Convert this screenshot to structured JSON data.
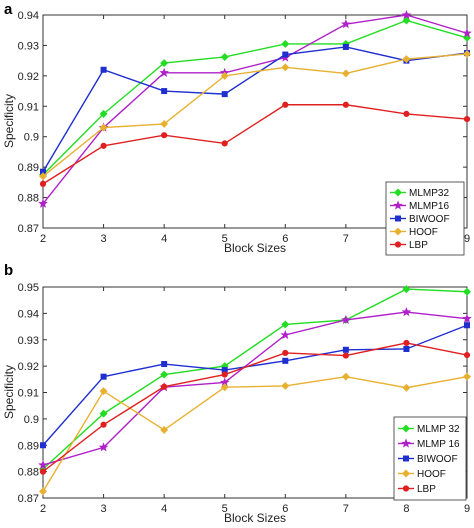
{
  "chart_data": [
    {
      "panel": "a",
      "type": "line",
      "xlabel": "Block Sizes",
      "ylabel": "Specificity",
      "x": [
        2,
        3,
        4,
        5,
        6,
        7,
        8,
        9
      ],
      "xlim": [
        2,
        9
      ],
      "ylim": [
        0.87,
        0.94
      ],
      "yticks": [
        "0.87",
        "0.88",
        "0.89",
        "0.9",
        "0.91",
        "0.92",
        "0.93",
        "0.94"
      ],
      "xticks": [
        "2",
        "3",
        "4",
        "5",
        "6",
        "7",
        "8",
        "9"
      ],
      "grid": false,
      "legend_position": "right",
      "series": [
        {
          "name": "MLMP32",
          "color": "#22dd22",
          "marker": "diamond",
          "values": [
            0.8875,
            0.9075,
            0.9242,
            0.9262,
            0.9305,
            0.9305,
            0.9382,
            0.9325
          ]
        },
        {
          "name": "MLMP16",
          "color": "#b020c8",
          "marker": "star",
          "values": [
            0.878,
            0.903,
            0.921,
            0.921,
            0.926,
            0.937,
            0.94,
            0.934
          ]
        },
        {
          "name": "BIWOOF",
          "color": "#1f2fd0",
          "marker": "square",
          "values": [
            0.8885,
            0.922,
            0.915,
            0.914,
            0.927,
            0.9295,
            0.925,
            0.9275
          ]
        },
        {
          "name": "HOOF",
          "color": "#e8b030",
          "marker": "diamond",
          "values": [
            0.887,
            0.903,
            0.9042,
            0.92,
            0.9228,
            0.9208,
            0.9255,
            0.9272
          ]
        },
        {
          "name": "LBP",
          "color": "#e02020",
          "marker": "circle",
          "values": [
            0.8845,
            0.897,
            0.9005,
            0.8978,
            0.9105,
            0.9105,
            0.9075,
            0.9058
          ]
        }
      ]
    },
    {
      "panel": "b",
      "type": "line",
      "xlabel": "Block Sizes",
      "ylabel": "Specificity",
      "x": [
        2,
        3,
        4,
        5,
        6,
        7,
        8,
        9
      ],
      "xlim": [
        2,
        9
      ],
      "ylim": [
        0.87,
        0.95
      ],
      "yticks": [
        "0.87",
        "0.88",
        "0.89",
        "0.9",
        "0.91",
        "0.92",
        "0.93",
        "0.94",
        "0.95"
      ],
      "xticks": [
        "2",
        "3",
        "4",
        "5",
        "6",
        "7",
        "8",
        "9"
      ],
      "grid": false,
      "legend_position": "bottom-right",
      "series": [
        {
          "name": "MLMP 32",
          "color": "#22dd22",
          "marker": "diamond",
          "values": [
            0.881,
            0.902,
            0.9168,
            0.92,
            0.9358,
            0.9375,
            0.9492,
            0.9482
          ]
        },
        {
          "name": "MLMP 16",
          "color": "#b020c8",
          "marker": "star",
          "values": [
            0.8825,
            0.8892,
            0.912,
            0.9138,
            0.9318,
            0.9375,
            0.9405,
            0.938
          ]
        },
        {
          "name": "BIWOOF",
          "color": "#1f2fd0",
          "marker": "square",
          "values": [
            0.89,
            0.916,
            0.9208,
            0.9185,
            0.922,
            0.9262,
            0.9265,
            0.9355
          ]
        },
        {
          "name": "HOOF",
          "color": "#e8b030",
          "marker": "diamond",
          "values": [
            0.8725,
            0.9105,
            0.8958,
            0.912,
            0.9125,
            0.916,
            0.9118,
            0.916
          ]
        },
        {
          "name": "LBP",
          "color": "#e02020",
          "marker": "circle",
          "values": [
            0.88,
            0.8978,
            0.9122,
            0.9168,
            0.925,
            0.924,
            0.9288,
            0.9242
          ]
        }
      ]
    }
  ]
}
